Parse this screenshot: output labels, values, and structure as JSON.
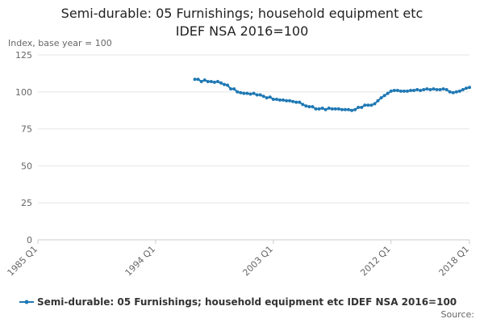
{
  "chart_data": {
    "type": "line",
    "title": [
      "Semi-durable: 05 Furnishings; household equipment etc",
      "IDEF NSA 2016=100"
    ],
    "y_label": "Index, base year = 100",
    "source": "Source:",
    "xlim": [
      "1985 Q1",
      "2018 Q1"
    ],
    "xticks": [
      "1985 Q1",
      "1994 Q1",
      "2003 Q1",
      "2012 Q1",
      "2018 Q1"
    ],
    "ylim": [
      0,
      125
    ],
    "yticks": [
      0,
      25,
      50,
      75,
      100,
      125
    ],
    "grid": true,
    "x": [
      "1997 Q1",
      "1997 Q2",
      "1997 Q3",
      "1997 Q4",
      "1998 Q1",
      "1998 Q2",
      "1998 Q3",
      "1998 Q4",
      "1999 Q1",
      "1999 Q2",
      "1999 Q3",
      "1999 Q4",
      "2000 Q1",
      "2000 Q2",
      "2000 Q3",
      "2000 Q4",
      "2001 Q1",
      "2001 Q2",
      "2001 Q3",
      "2001 Q4",
      "2002 Q1",
      "2002 Q2",
      "2002 Q3",
      "2002 Q4",
      "2003 Q1",
      "2003 Q2",
      "2003 Q3",
      "2003 Q4",
      "2004 Q1",
      "2004 Q2",
      "2004 Q3",
      "2004 Q4",
      "2005 Q1",
      "2005 Q2",
      "2005 Q3",
      "2005 Q4",
      "2006 Q1",
      "2006 Q2",
      "2006 Q3",
      "2006 Q4",
      "2007 Q1",
      "2007 Q2",
      "2007 Q3",
      "2007 Q4",
      "2008 Q1",
      "2008 Q2",
      "2008 Q3",
      "2008 Q4",
      "2009 Q1",
      "2009 Q2",
      "2009 Q3",
      "2009 Q4",
      "2010 Q1",
      "2010 Q2",
      "2010 Q3",
      "2010 Q4",
      "2011 Q1",
      "2011 Q2",
      "2011 Q3",
      "2011 Q4",
      "2012 Q1",
      "2012 Q2",
      "2012 Q3",
      "2012 Q4",
      "2013 Q1",
      "2013 Q2",
      "2013 Q3",
      "2013 Q4",
      "2014 Q1",
      "2014 Q2",
      "2014 Q3",
      "2014 Q4",
      "2015 Q1",
      "2015 Q2",
      "2015 Q3",
      "2015 Q4",
      "2016 Q1",
      "2016 Q2",
      "2016 Q3",
      "2016 Q4",
      "2017 Q1",
      "2017 Q2",
      "2017 Q3",
      "2017 Q4",
      "2018 Q1"
    ],
    "series": [
      {
        "name": "Semi-durable: 05 Furnishings; household equipment etc IDEF NSA 2016=100",
        "color": "#1f78b4",
        "values": [
          108.5,
          108.5,
          107,
          108,
          107,
          107,
          106.5,
          107,
          106,
          105,
          104.5,
          102,
          102,
          100,
          99.5,
          99,
          99,
          98.5,
          99,
          98,
          98,
          97,
          96,
          96.5,
          95,
          95,
          94.5,
          94.5,
          94,
          94,
          93.5,
          93,
          93,
          91.5,
          90.5,
          90,
          90,
          88.5,
          88.5,
          89,
          88,
          89,
          88.5,
          88.5,
          88.5,
          88,
          88,
          88,
          87.5,
          88,
          89.5,
          89.5,
          91,
          91,
          91,
          92,
          94,
          96,
          97.5,
          99,
          100.5,
          101,
          101,
          100.5,
          100.5,
          100.5,
          101,
          101,
          101.5,
          101,
          101.5,
          102,
          101.5,
          102,
          101.5,
          101.5,
          102,
          101.5,
          100,
          99.5,
          100,
          100.5,
          101.5,
          102.5,
          103
        ]
      }
    ]
  }
}
